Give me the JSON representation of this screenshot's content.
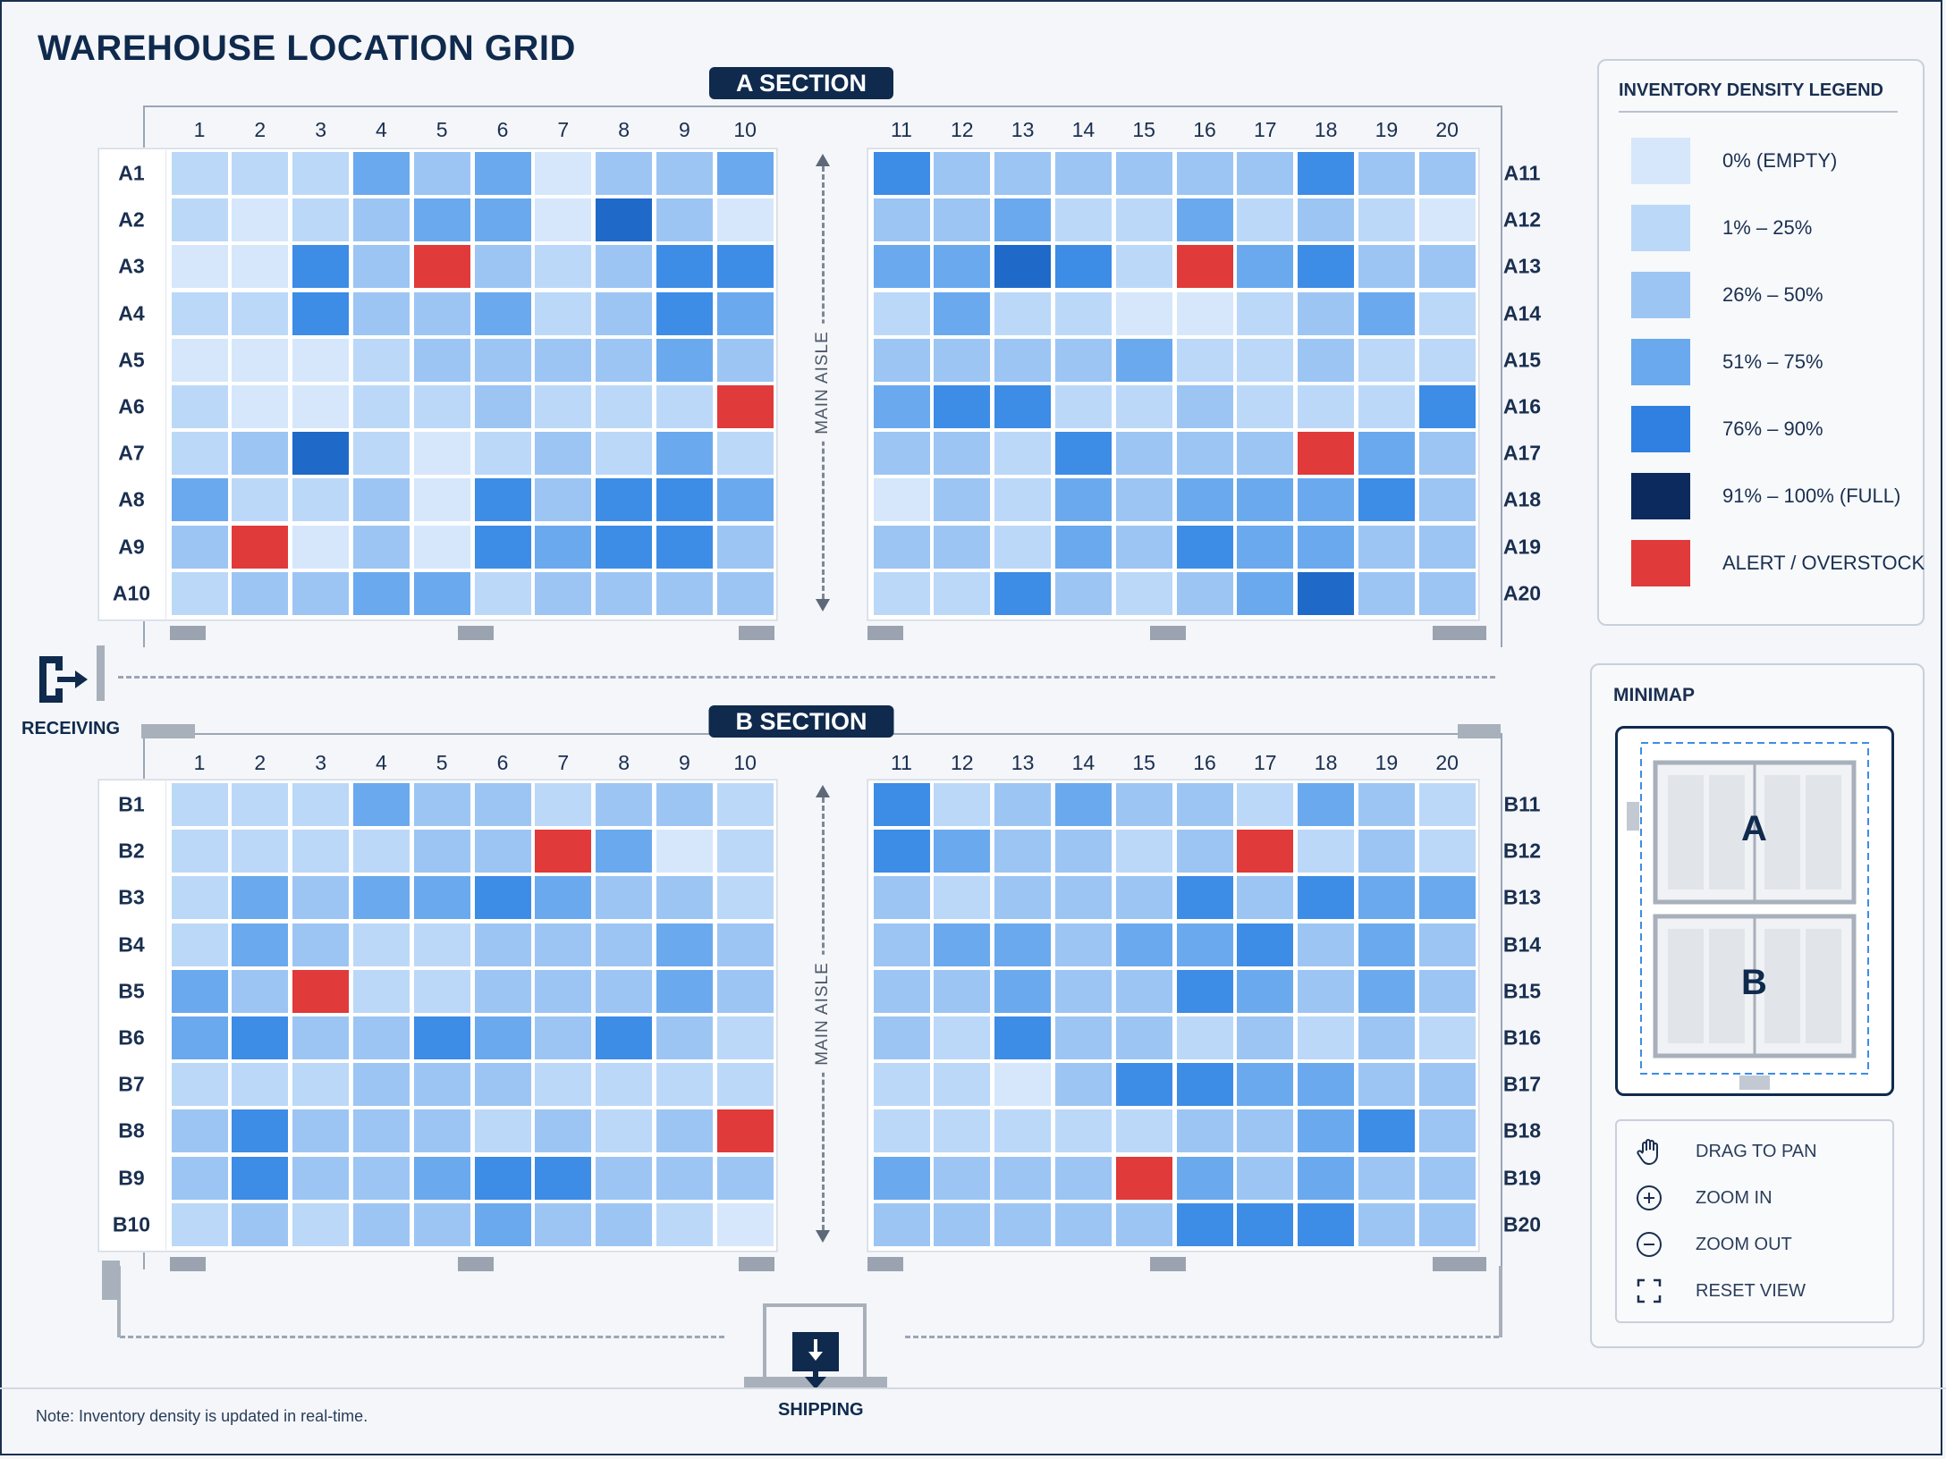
{
  "title": "WAREHOUSE LOCATION GRID",
  "sections": [
    {
      "label": "A SECTION",
      "columns_left": [
        "1",
        "2",
        "3",
        "4",
        "5",
        "6",
        "7",
        "8",
        "9",
        "10"
      ],
      "columns_right": [
        "11",
        "12",
        "13",
        "14",
        "15",
        "16",
        "17",
        "18",
        "19",
        "20"
      ],
      "rows_left": [
        "A1",
        "A2",
        "A3",
        "A4",
        "A5",
        "A6",
        "A7",
        "A8",
        "A9",
        "A10"
      ],
      "rows_right": [
        "A11",
        "A12",
        "A13",
        "A14",
        "A15",
        "A16",
        "A17",
        "A18",
        "A19",
        "A20"
      ],
      "aisle_label": "MAIN AISLE",
      "density_left": [
        [
          1,
          1,
          1,
          3,
          2,
          3,
          0,
          2,
          2,
          3
        ],
        [
          1,
          0,
          1,
          2,
          3,
          3,
          0,
          5,
          2,
          0
        ],
        [
          0,
          0,
          4,
          2,
          6,
          2,
          1,
          2,
          4,
          4
        ],
        [
          1,
          1,
          4,
          2,
          2,
          3,
          1,
          2,
          4,
          3
        ],
        [
          0,
          0,
          0,
          1,
          2,
          2,
          2,
          2,
          3,
          2
        ],
        [
          1,
          0,
          0,
          1,
          1,
          2,
          1,
          1,
          1,
          6
        ],
        [
          1,
          2,
          5,
          1,
          0,
          1,
          2,
          1,
          3,
          1
        ],
        [
          3,
          1,
          1,
          2,
          0,
          4,
          2,
          4,
          4,
          3
        ],
        [
          2,
          6,
          0,
          2,
          0,
          4,
          3,
          4,
          4,
          2
        ],
        [
          1,
          2,
          2,
          3,
          3,
          1,
          2,
          2,
          2,
          2
        ]
      ],
      "density_right": [
        [
          4,
          2,
          2,
          2,
          2,
          2,
          2,
          4,
          2,
          2
        ],
        [
          2,
          2,
          3,
          1,
          1,
          3,
          1,
          2,
          1,
          0
        ],
        [
          3,
          3,
          5,
          4,
          1,
          6,
          3,
          4,
          2,
          2
        ],
        [
          1,
          3,
          1,
          1,
          0,
          0,
          1,
          2,
          3,
          1
        ],
        [
          2,
          2,
          2,
          2,
          3,
          1,
          1,
          2,
          1,
          1
        ],
        [
          3,
          4,
          4,
          1,
          1,
          2,
          1,
          1,
          1,
          4
        ],
        [
          2,
          2,
          1,
          4,
          2,
          2,
          2,
          6,
          3,
          2
        ],
        [
          0,
          2,
          1,
          3,
          2,
          3,
          3,
          3,
          4,
          2
        ],
        [
          2,
          2,
          1,
          3,
          2,
          4,
          3,
          3,
          2,
          2
        ],
        [
          1,
          1,
          4,
          2,
          1,
          2,
          3,
          5,
          2,
          2
        ]
      ]
    },
    {
      "label": "B SECTION",
      "columns_left": [
        "1",
        "2",
        "3",
        "4",
        "5",
        "6",
        "7",
        "8",
        "9",
        "10"
      ],
      "columns_right": [
        "11",
        "12",
        "13",
        "14",
        "15",
        "16",
        "17",
        "18",
        "19",
        "20"
      ],
      "rows_left": [
        "B1",
        "B2",
        "B3",
        "B4",
        "B5",
        "B6",
        "B7",
        "B8",
        "B9",
        "B10"
      ],
      "rows_right": [
        "B11",
        "B12",
        "B13",
        "B14",
        "B15",
        "B16",
        "B17",
        "B18",
        "B19",
        "B20"
      ],
      "aisle_label": "MAIN AISLE",
      "density_left": [
        [
          1,
          1,
          1,
          3,
          2,
          2,
          1,
          2,
          2,
          1
        ],
        [
          1,
          1,
          1,
          1,
          2,
          2,
          6,
          3,
          0,
          1
        ],
        [
          1,
          3,
          2,
          3,
          3,
          4,
          3,
          2,
          2,
          1
        ],
        [
          1,
          3,
          2,
          1,
          1,
          2,
          2,
          2,
          3,
          2
        ],
        [
          3,
          2,
          6,
          1,
          1,
          2,
          2,
          2,
          3,
          2
        ],
        [
          3,
          4,
          2,
          2,
          4,
          3,
          2,
          4,
          2,
          1
        ],
        [
          1,
          1,
          1,
          2,
          2,
          2,
          1,
          1,
          1,
          1
        ],
        [
          2,
          4,
          2,
          2,
          2,
          1,
          2,
          1,
          2,
          6
        ],
        [
          2,
          4,
          2,
          2,
          3,
          4,
          4,
          2,
          2,
          2
        ],
        [
          1,
          2,
          1,
          2,
          2,
          3,
          2,
          2,
          1,
          0
        ]
      ],
      "density_right": [
        [
          4,
          1,
          2,
          3,
          2,
          2,
          1,
          3,
          2,
          1
        ],
        [
          4,
          3,
          2,
          2,
          1,
          2,
          6,
          1,
          2,
          1
        ],
        [
          2,
          1,
          2,
          2,
          2,
          4,
          2,
          4,
          3,
          3
        ],
        [
          2,
          3,
          3,
          2,
          3,
          3,
          4,
          2,
          3,
          2
        ],
        [
          2,
          2,
          3,
          2,
          2,
          4,
          3,
          2,
          3,
          2
        ],
        [
          2,
          1,
          4,
          2,
          2,
          1,
          2,
          1,
          2,
          1
        ],
        [
          1,
          1,
          0,
          2,
          4,
          4,
          3,
          3,
          2,
          2
        ],
        [
          1,
          1,
          1,
          1,
          1,
          2,
          2,
          3,
          4,
          2
        ],
        [
          3,
          2,
          2,
          2,
          6,
          3,
          2,
          3,
          2,
          2
        ],
        [
          2,
          2,
          2,
          2,
          2,
          4,
          4,
          4,
          2,
          2
        ]
      ]
    }
  ],
  "receiving": {
    "label": "RECEIVING",
    "icon": "dock-door-exit-icon"
  },
  "shipping": {
    "label": "SHIPPING",
    "icon": "dock-download-icon"
  },
  "legend": {
    "title": "INVENTORY DENSITY LEGEND",
    "items": [
      {
        "label": "0%  (EMPTY)",
        "color": "#d6e7fb"
      },
      {
        "label": "1% – 25%",
        "color": "#bcd8f8"
      },
      {
        "label": "26% – 50%",
        "color": "#9cc5f4"
      },
      {
        "label": "51% – 75%",
        "color": "#6aa9ee"
      },
      {
        "label": "76% – 90%",
        "color": "#2f80e0"
      },
      {
        "label": "91% – 100% (FULL)",
        "color": "#0c2a5e"
      },
      {
        "label": "ALERT / OVERSTOCK",
        "color": "#e03a3a"
      }
    ]
  },
  "density_palette": [
    "#d6e7fb",
    "#bcd8f8",
    "#9cc5f4",
    "#6aa9ee",
    "#3d8ce6",
    "#1f69c9",
    "#e03a3a"
  ],
  "minimap": {
    "title": "MINIMAP",
    "label_a": "A",
    "label_b": "B"
  },
  "controls": [
    {
      "label": "DRAG TO PAN",
      "icon": "hand-pan-icon"
    },
    {
      "label": "ZOOM IN",
      "icon": "zoom-in-icon"
    },
    {
      "label": "ZOOM OUT",
      "icon": "zoom-out-icon"
    },
    {
      "label": "RESET VIEW",
      "icon": "reset-view-icon"
    }
  ],
  "note": "Note: Inventory density is updated in real-time."
}
